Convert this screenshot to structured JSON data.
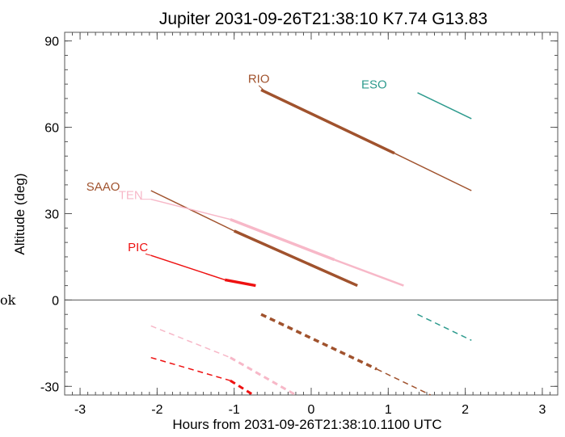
{
  "chart_data": {
    "type": "line",
    "title": "Jupiter 2031-09-26T21:38:10  K7.74  G13.83",
    "xlabel": "Hours from 2031-09-26T21:38:10.1100 UTC",
    "ylabel": "Altitude (deg)",
    "xlim": [
      -3.2,
      3.2
    ],
    "ylim": [
      -33,
      93
    ],
    "xticks": [
      -3,
      -2,
      -1,
      0,
      1,
      2,
      3
    ],
    "yticks": [
      -30,
      0,
      30,
      60,
      90
    ],
    "margin_text": "ok",
    "zero_line": 0,
    "series": [
      {
        "name": "RIO",
        "color": "#a0522d",
        "label_pos": [
          -0.82,
          75.5
        ],
        "above": [
          {
            "x": [
              -0.65,
              1.08
            ],
            "y": [
              73,
              51
            ],
            "width": 3.5
          },
          {
            "x": [
              1.08,
              2.08
            ],
            "y": [
              51,
              38
            ],
            "width": 1.5
          }
        ],
        "below": [
          {
            "x": [
              -0.65,
              0.85
            ],
            "y": [
              -5,
              -24
            ],
            "width": 3.5
          },
          {
            "x": [
              0.85,
              1.55
            ],
            "y": [
              -24,
              -33
            ],
            "width": 1.5
          }
        ]
      },
      {
        "name": "ESO",
        "color": "#2e9b8e",
        "label_pos": [
          0.65,
          73.5
        ],
        "above": [
          {
            "x": [
              1.38,
              2.08
            ],
            "y": [
              72,
              63
            ],
            "width": 1.5
          }
        ],
        "below": [
          {
            "x": [
              1.38,
              2.08
            ],
            "y": [
              -5,
              -14
            ],
            "width": 1.5
          }
        ]
      },
      {
        "name": "SAAO",
        "color": "#a0522d",
        "label_pos": [
          -2.92,
          38
        ],
        "above": [
          {
            "x": [
              -2.08,
              -1.0
            ],
            "y": [
              38,
              24
            ],
            "width": 1.5
          },
          {
            "x": [
              -1.0,
              0.6
            ],
            "y": [
              24,
              5
            ],
            "width": 3.5
          }
        ],
        "below": []
      },
      {
        "name": "TEN",
        "color": "#f7b8c8",
        "label_pos": [
          -2.5,
          35
        ],
        "above": [
          {
            "x": [
              -2.08,
              -1.05
            ],
            "y": [
              35,
              28
            ],
            "width": 1.5
          },
          {
            "x": [
              -1.05,
              0.3
            ],
            "y": [
              28,
              14
            ],
            "width": 3.5
          },
          {
            "x": [
              0.3,
              1.2
            ],
            "y": [
              14,
              5
            ],
            "width": 2.5
          }
        ],
        "below": [
          {
            "x": [
              -2.08,
              -1.05
            ],
            "y": [
              -9,
              -20
            ],
            "width": 1.5
          },
          {
            "x": [
              -1.05,
              -0.2
            ],
            "y": [
              -20,
              -33
            ],
            "width": 3.0
          }
        ]
      },
      {
        "name": "PIC",
        "color": "#ee1111",
        "label_pos": [
          -2.38,
          17
        ],
        "above": [
          {
            "x": [
              -2.08,
              -1.12
            ],
            "y": [
              15.5,
              7
            ],
            "width": 1.5
          },
          {
            "x": [
              -1.12,
              -0.72
            ],
            "y": [
              7,
              5
            ],
            "width": 3.5
          }
        ],
        "below": [
          {
            "x": [
              -2.08,
              -1.05
            ],
            "y": [
              -20,
              -28
            ],
            "width": 1.5
          },
          {
            "x": [
              -1.05,
              -0.75
            ],
            "y": [
              -28,
              -33
            ],
            "width": 3.0
          }
        ]
      }
    ],
    "label_connectors": [
      {
        "series": "RIO",
        "from": [
          -0.68,
          74.5
        ],
        "to": [
          -0.62,
          73
        ]
      },
      {
        "series": "TEN",
        "from": [
          -2.22,
          35
        ],
        "to": [
          -2.08,
          35
        ]
      },
      {
        "series": "PIC",
        "from": [
          -2.15,
          16
        ],
        "to": [
          -2.08,
          15.5
        ]
      }
    ]
  }
}
